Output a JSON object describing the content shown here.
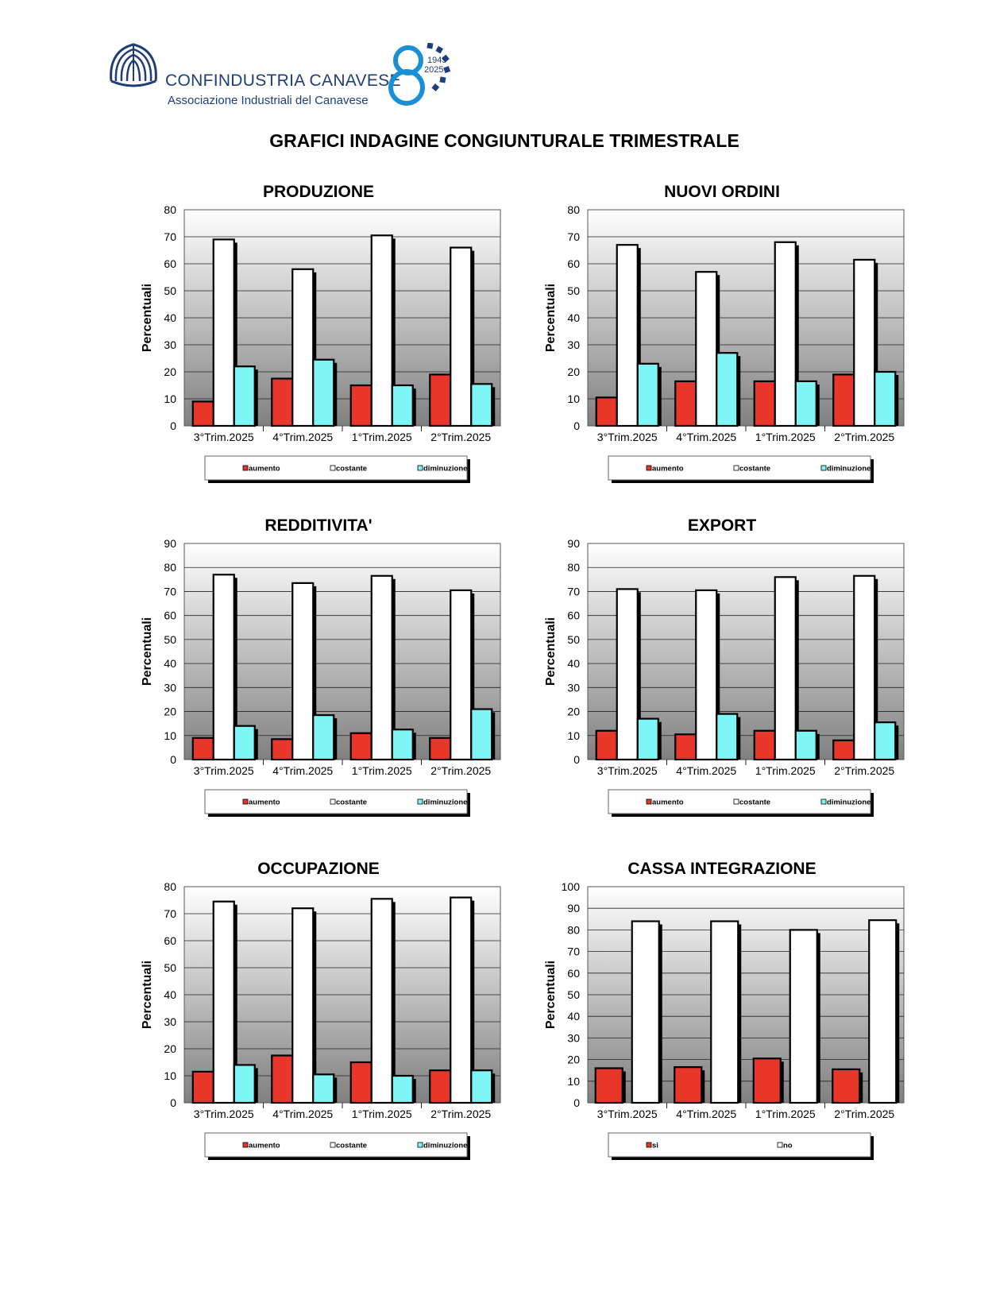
{
  "header": {
    "brand_name": "CONFINDUSTRIA CANAVESE",
    "brand_subtitle": "Associazione Industriali del Canavese",
    "anniversary_years": [
      "1945",
      "2025"
    ],
    "brand_color": "#1f3d78",
    "accent_color": "#1a8fd6"
  },
  "document_title": "GRAFICI INDAGINE CONGIUNTURALE TRIMESTRALE",
  "chart_data": [
    {
      "id": "produzione",
      "type": "bar",
      "title": "PRODUZIONE",
      "categories": [
        "3°Trim.2025",
        "4°Trim.2025",
        "1°Trim.2025",
        "2°Trim.2025"
      ],
      "ylabel": "Percentuali",
      "ylim": [
        0,
        80
      ],
      "ystep": 10,
      "grid": true,
      "legend": "bottom",
      "series": [
        {
          "name": "aumento",
          "color": "#e8372a",
          "values": [
            9,
            17.5,
            15,
            19
          ]
        },
        {
          "name": "costante",
          "color": "#ffffff",
          "values": [
            69,
            58,
            70.5,
            66
          ]
        },
        {
          "name": "diminuzione",
          "color": "#7ff6f6",
          "values": [
            22,
            24.5,
            15,
            15.5
          ]
        }
      ]
    },
    {
      "id": "nuovi-ordini",
      "type": "bar",
      "title": "NUOVI ORDINI",
      "categories": [
        "3°Trim.2025",
        "4°Trim.2025",
        "1°Trim.2025",
        "2°Trim.2025"
      ],
      "ylabel": "Percentuali",
      "ylim": [
        0,
        80
      ],
      "ystep": 10,
      "grid": true,
      "legend": "bottom",
      "series": [
        {
          "name": "aumento",
          "color": "#e8372a",
          "values": [
            10.5,
            16.5,
            16.5,
            19
          ]
        },
        {
          "name": "costante",
          "color": "#ffffff",
          "values": [
            67,
            57,
            68,
            61.5
          ]
        },
        {
          "name": "diminuzione",
          "color": "#7ff6f6",
          "values": [
            23,
            27,
            16.5,
            20
          ]
        }
      ]
    },
    {
      "id": "redditivita",
      "type": "bar",
      "title": "REDDITIVITA'",
      "categories": [
        "3°Trim.2025",
        "4°Trim.2025",
        "1°Trim.2025",
        "2°Trim.2025"
      ],
      "ylabel": "Percentuali",
      "ylim": [
        0,
        90
      ],
      "ystep": 10,
      "grid": true,
      "legend": "bottom",
      "series": [
        {
          "name": "aumento",
          "color": "#e8372a",
          "values": [
            9,
            8.5,
            11,
            9
          ]
        },
        {
          "name": "costante",
          "color": "#ffffff",
          "values": [
            77,
            73.5,
            76.5,
            70.5
          ]
        },
        {
          "name": "diminuzione",
          "color": "#7ff6f6",
          "values": [
            14,
            18.5,
            12.5,
            21
          ]
        }
      ]
    },
    {
      "id": "export",
      "type": "bar",
      "title": "EXPORT",
      "categories": [
        "3°Trim.2025",
        "4°Trim.2025",
        "1°Trim.2025",
        "2°Trim.2025"
      ],
      "ylabel": "Percentuali",
      "ylim": [
        0,
        90
      ],
      "ystep": 10,
      "grid": true,
      "legend": "bottom",
      "series": [
        {
          "name": "aumento",
          "color": "#e8372a",
          "values": [
            12,
            10.5,
            12,
            8
          ]
        },
        {
          "name": "costante",
          "color": "#ffffff",
          "values": [
            71,
            70.5,
            76,
            76.5
          ]
        },
        {
          "name": "diminuzione",
          "color": "#7ff6f6",
          "values": [
            17,
            19,
            12,
            15.5
          ]
        }
      ]
    },
    {
      "id": "occupazione",
      "type": "bar",
      "title": "OCCUPAZIONE",
      "categories": [
        "3°Trim.2025",
        "4°Trim.2025",
        "1°Trim.2025",
        "2°Trim.2025"
      ],
      "ylabel": "Percentuali",
      "ylim": [
        0,
        80
      ],
      "ystep": 10,
      "grid": true,
      "legend": "bottom",
      "series": [
        {
          "name": "aumento",
          "color": "#e8372a",
          "values": [
            11.5,
            17.5,
            15,
            12
          ]
        },
        {
          "name": "costante",
          "color": "#ffffff",
          "values": [
            74.5,
            72,
            75.5,
            76
          ]
        },
        {
          "name": "diminuzione",
          "color": "#7ff6f6",
          "values": [
            14,
            10.5,
            10,
            12
          ]
        }
      ]
    },
    {
      "id": "cassa-integrazione",
      "type": "bar",
      "title": "CASSA INTEGRAZIONE",
      "categories": [
        "3°Trim.2025",
        "4°Trim.2025",
        "1°Trim.2025",
        "2°Trim.2025"
      ],
      "ylabel": "Percentuali",
      "ylim": [
        0,
        100
      ],
      "ystep": 10,
      "grid": true,
      "legend": "bottom",
      "series": [
        {
          "name": "si",
          "color": "#e8372a",
          "values": [
            16,
            16.5,
            20.5,
            15.5
          ]
        },
        {
          "name": "no",
          "color": "#ffffff",
          "values": [
            84,
            84,
            80,
            84.5
          ]
        }
      ]
    }
  ]
}
